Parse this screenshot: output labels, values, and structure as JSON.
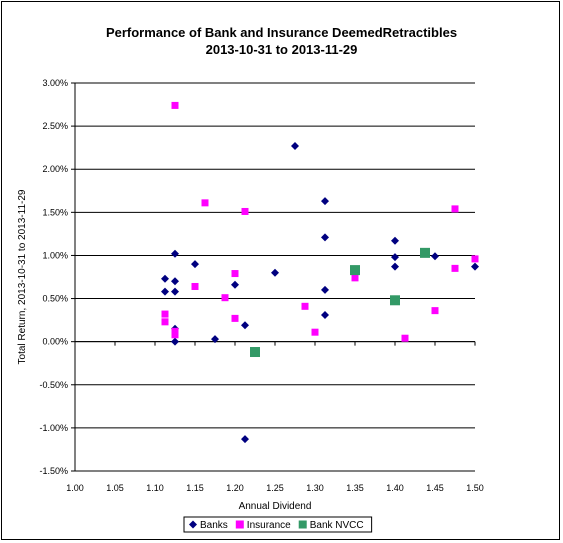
{
  "chart_data": {
    "type": "scatter",
    "title": "Performance of Bank and Insurance DeemedRetractibles",
    "subtitle": "2013-10-31 to 2013-11-29",
    "xlabel": "Annual Dividend",
    "ylabel": "Total Return, 2013-10-31 to 2013-11-29",
    "xlim": [
      1.0,
      1.5
    ],
    "ylim": [
      -1.5,
      3.0
    ],
    "x_ticks": [
      "1.00",
      "1.05",
      "1.10",
      "1.15",
      "1.20",
      "1.25",
      "1.30",
      "1.35",
      "1.40",
      "1.45",
      "1.50"
    ],
    "y_ticks": [
      "3.00%",
      "2.50%",
      "2.00%",
      "1.50%",
      "1.00%",
      "0.50%",
      "0.00%",
      "-0.50%",
      "-1.00%",
      "-1.50%"
    ],
    "grid": "horizontal major gridlines",
    "legend_position": "bottom",
    "series": [
      {
        "name": "Banks",
        "color": "#000080",
        "marker": "diamond",
        "points": [
          [
            1.1125,
            0.73
          ],
          [
            1.1125,
            0.58
          ],
          [
            1.125,
            1.02
          ],
          [
            1.125,
            0.7
          ],
          [
            1.125,
            0.58
          ],
          [
            1.125,
            0.15
          ],
          [
            1.125,
            0.0
          ],
          [
            1.15,
            0.9
          ],
          [
            1.175,
            0.03
          ],
          [
            1.2,
            0.66
          ],
          [
            1.2125,
            0.19
          ],
          [
            1.2125,
            -1.13
          ],
          [
            1.25,
            0.8
          ],
          [
            1.275,
            2.27
          ],
          [
            1.3125,
            1.63
          ],
          [
            1.3125,
            1.21
          ],
          [
            1.3125,
            0.6
          ],
          [
            1.3125,
            0.31
          ],
          [
            1.4,
            1.17
          ],
          [
            1.4,
            0.98
          ],
          [
            1.4,
            0.87
          ],
          [
            1.45,
            0.99
          ],
          [
            1.5,
            0.87
          ]
        ]
      },
      {
        "name": "Insurance",
        "color": "#FF00FF",
        "marker": "square",
        "points": [
          [
            1.125,
            2.74
          ],
          [
            1.1125,
            0.32
          ],
          [
            1.1125,
            0.23
          ],
          [
            1.125,
            0.12
          ],
          [
            1.125,
            0.08
          ],
          [
            1.1625,
            1.61
          ],
          [
            1.15,
            0.64
          ],
          [
            1.1875,
            0.51
          ],
          [
            1.2,
            0.79
          ],
          [
            1.2,
            0.27
          ],
          [
            1.2125,
            1.51
          ],
          [
            1.2875,
            0.41
          ],
          [
            1.3,
            0.11
          ],
          [
            1.35,
            0.74
          ],
          [
            1.4125,
            0.04
          ],
          [
            1.45,
            0.36
          ],
          [
            1.475,
            1.54
          ],
          [
            1.475,
            0.85
          ],
          [
            1.5,
            0.96
          ]
        ]
      },
      {
        "name": "Bank NVCC",
        "color": "#339966",
        "marker": "square",
        "points": [
          [
            1.225,
            -0.12
          ],
          [
            1.35,
            0.83
          ],
          [
            1.4,
            0.48
          ],
          [
            1.4375,
            1.03
          ]
        ]
      }
    ]
  }
}
